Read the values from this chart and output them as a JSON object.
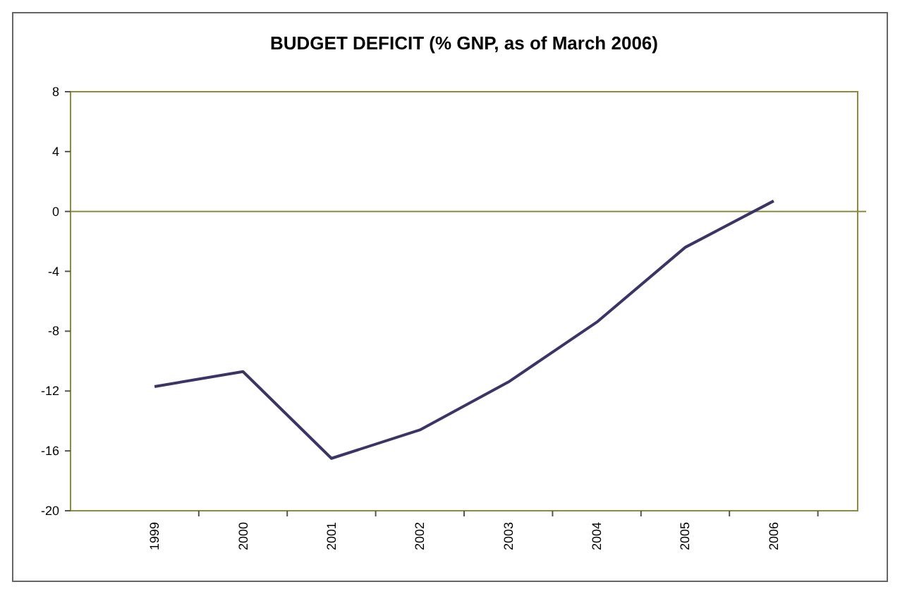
{
  "chart_data": {
    "type": "line",
    "title": "BUDGET DEFICIT (% GNP, as of March 2006)",
    "categories": [
      "1999",
      "2000",
      "2001",
      "2002",
      "2003",
      "2004",
      "2005",
      "2006"
    ],
    "series": [
      {
        "color": "#3b3566",
        "values": [
          -11.7,
          -10.7,
          -16.5,
          -14.6,
          -11.4,
          -7.4,
          -2.4,
          0.7
        ]
      }
    ],
    "ylim": [
      -20,
      8
    ],
    "yticks": [
      -20,
      -16,
      -12,
      -8,
      -4,
      0,
      4,
      8
    ],
    "ref_lines": [
      {
        "axis": "y",
        "value": 0,
        "color": "#8c8c3c"
      }
    ],
    "grid": false,
    "marker": "none",
    "line_style": "solid"
  }
}
